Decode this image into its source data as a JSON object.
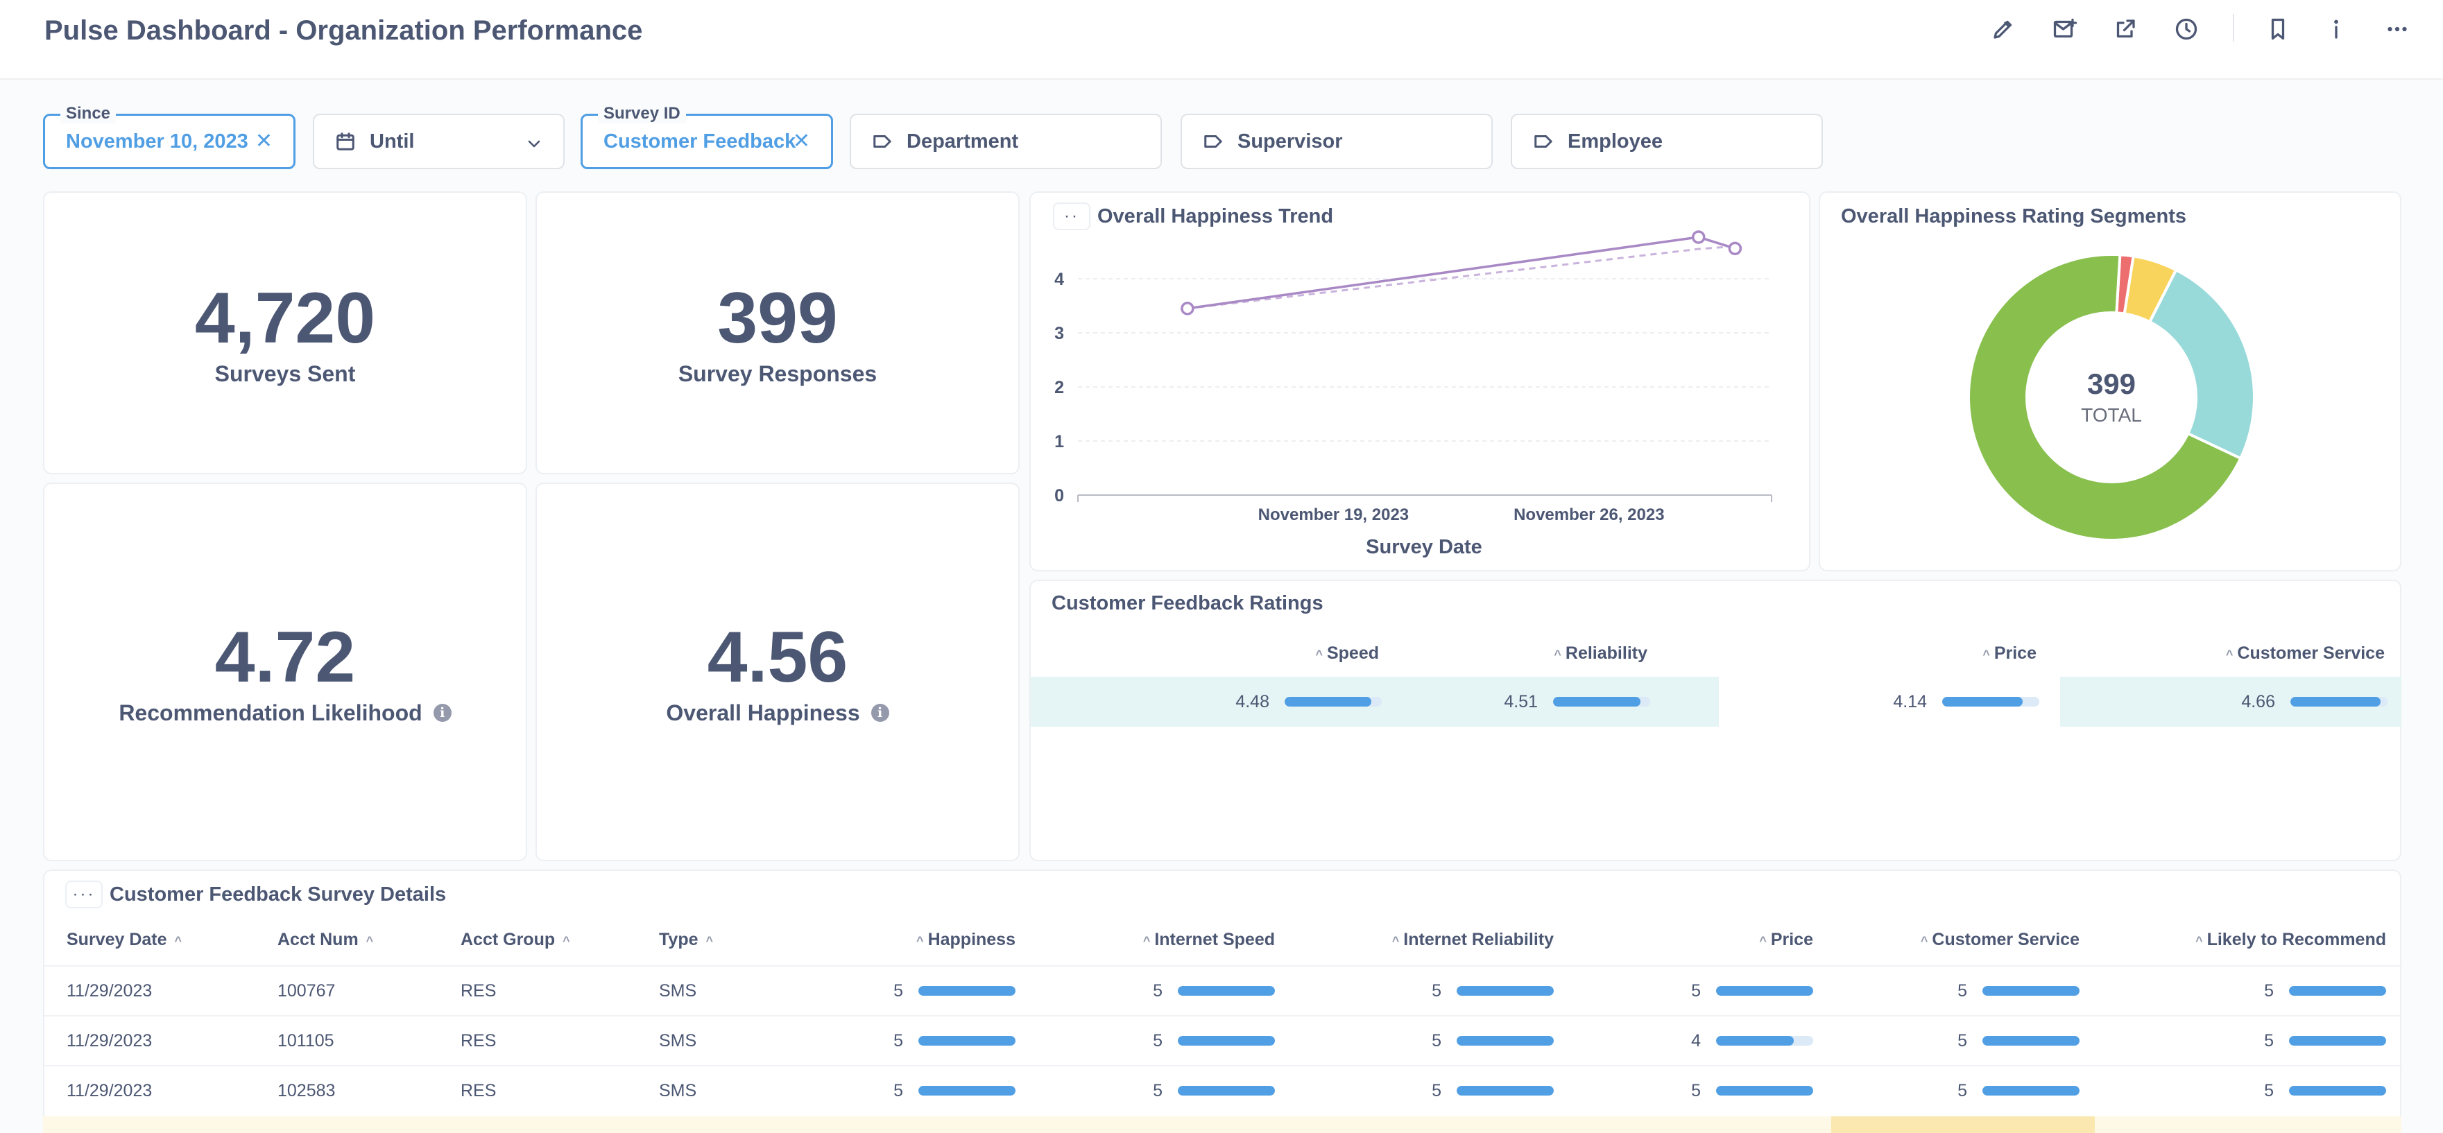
{
  "header": {
    "title": "Pulse Dashboard - Organization Performance",
    "icons": [
      "pencil-icon",
      "subscription-icon",
      "share-icon",
      "history-icon",
      "bookmark-icon",
      "info-icon",
      "more-icon"
    ]
  },
  "filters": {
    "since": {
      "label": "Since",
      "value": "November 10, 2023"
    },
    "until": {
      "value": "Until"
    },
    "survey": {
      "label": "Survey ID",
      "value": "Customer Feedback"
    },
    "department": {
      "value": "Department"
    },
    "supervisor": {
      "value": "Supervisor"
    },
    "employee": {
      "value": "Employee"
    }
  },
  "kpis": {
    "surveys_sent": {
      "value": "4,720",
      "label": "Surveys Sent"
    },
    "survey_responses": {
      "value": "399",
      "label": "Survey Responses"
    },
    "recommendation": {
      "value": "4.72",
      "label": "Recommendation Likelihood"
    },
    "happiness": {
      "value": "4.56",
      "label": "Overall Happiness"
    }
  },
  "trend": {
    "title": "Overall Happiness Trend",
    "xlabel": "Survey Date",
    "x_ticks": [
      "November 19, 2023",
      "November 26, 2023"
    ],
    "y_ticks": [
      "0",
      "1",
      "2",
      "3",
      "4"
    ]
  },
  "donut": {
    "title": "Overall Happiness Rating Segments",
    "total_value": "399",
    "total_label": "TOTAL"
  },
  "ratings": {
    "title": "Customer Feedback Ratings",
    "columns": [
      "Speed",
      "Reliability",
      "Price",
      "Customer Service"
    ],
    "values": [
      "4.48",
      "4.51",
      "4.14",
      "4.66"
    ]
  },
  "details": {
    "title": "Customer Feedback Survey Details",
    "columns": [
      "Survey Date",
      "Acct Num",
      "Acct Group",
      "Type",
      "Happiness",
      "Internet Speed",
      "Internet Reliability",
      "Price",
      "Customer Service",
      "Likely to Recommend"
    ],
    "rows": [
      [
        "11/29/2023",
        "100767",
        "RES",
        "SMS",
        "5",
        "5",
        "5",
        "5",
        "5",
        "5"
      ],
      [
        "11/29/2023",
        "101105",
        "RES",
        "SMS",
        "5",
        "5",
        "5",
        "4",
        "5",
        "5"
      ],
      [
        "11/29/2023",
        "102583",
        "RES",
        "SMS",
        "5",
        "5",
        "5",
        "5",
        "5",
        "5"
      ]
    ]
  },
  "chart_data": [
    {
      "type": "line",
      "title": "Overall Happiness Trend",
      "xlabel": "Survey Date",
      "ylabel": "",
      "ylim": [
        0,
        4.5
      ],
      "x": [
        "2023-11-15",
        "2023-11-29",
        "2023-11-30"
      ],
      "series": [
        {
          "values": [
            3.45,
            4.77,
            4.56
          ]
        }
      ],
      "trendline": [
        3.45,
        4.55,
        4.6
      ],
      "grid": true
    },
    {
      "type": "pie",
      "title": "Overall Happiness Rating Segments",
      "total": 399,
      "slices": [
        {
          "value": 6,
          "color": "#ed6e6e"
        },
        {
          "value": 20,
          "color": "#f9d45c"
        },
        {
          "value": 98,
          "color": "#98d9d9"
        },
        {
          "value": 275,
          "color": "#88bf4d"
        }
      ]
    },
    {
      "type": "table",
      "title": "Customer Feedback Ratings",
      "categories": [
        "Speed",
        "Reliability",
        "Price",
        "Customer Service"
      ],
      "values": [
        4.48,
        4.51,
        4.14,
        4.66
      ],
      "max": 5
    }
  ],
  "colors": {
    "accent": "#509ee3",
    "text": "#4c5773",
    "highlight_row": "#e5f4f4",
    "line": "#a989c5",
    "footer_row": "#fef8e6"
  }
}
